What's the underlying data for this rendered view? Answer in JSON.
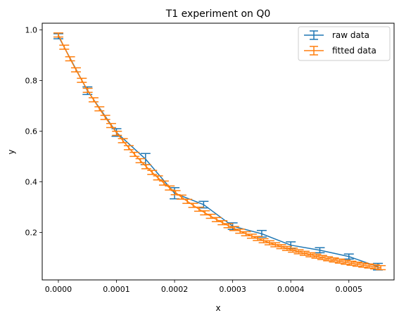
{
  "chart_data": {
    "type": "line",
    "title": "T1 experiment on Q0",
    "xlabel": "x",
    "ylabel": "y",
    "xlim": [
      -2.78e-05,
      0.0005778
    ],
    "ylim": [
      0.0127,
      1.0265
    ],
    "x_ticks": [
      0.0,
      0.0001,
      0.0002,
      0.0003,
      0.0004,
      0.0005
    ],
    "x_tick_labels": [
      "0.0000",
      "0.0001",
      "0.0002",
      "0.0003",
      "0.0004",
      "0.0005"
    ],
    "y_ticks": [
      0.2,
      0.4,
      0.6,
      0.8,
      1.0
    ],
    "y_tick_labels": [
      "0.2",
      "0.4",
      "0.6",
      "0.8",
      "1.0"
    ],
    "grid": false,
    "legend_position": "top-right",
    "series": [
      {
        "name": "raw data",
        "color": "#1f77b4",
        "x": [
          0.0,
          5e-05,
          0.0001,
          0.00015,
          0.0002,
          0.00025,
          0.0003,
          0.00035,
          0.0004,
          0.00045,
          0.0005,
          0.00055
        ],
        "y": [
          0.975,
          0.76,
          0.595,
          0.49,
          0.355,
          0.31,
          0.225,
          0.195,
          0.15,
          0.13,
          0.105,
          0.065
        ],
        "yerr": [
          0.01,
          0.015,
          0.015,
          0.022,
          0.022,
          0.013,
          0.013,
          0.013,
          0.013,
          0.01,
          0.01,
          0.013
        ]
      },
      {
        "name": "fitted data",
        "color": "#ff7f0e",
        "x_start": 0.0,
        "x_end": 0.000555,
        "n_points": 56,
        "model": "exponential",
        "amplitude": 0.98,
        "t1": 0.0002,
        "yerr": 0.008
      }
    ]
  }
}
